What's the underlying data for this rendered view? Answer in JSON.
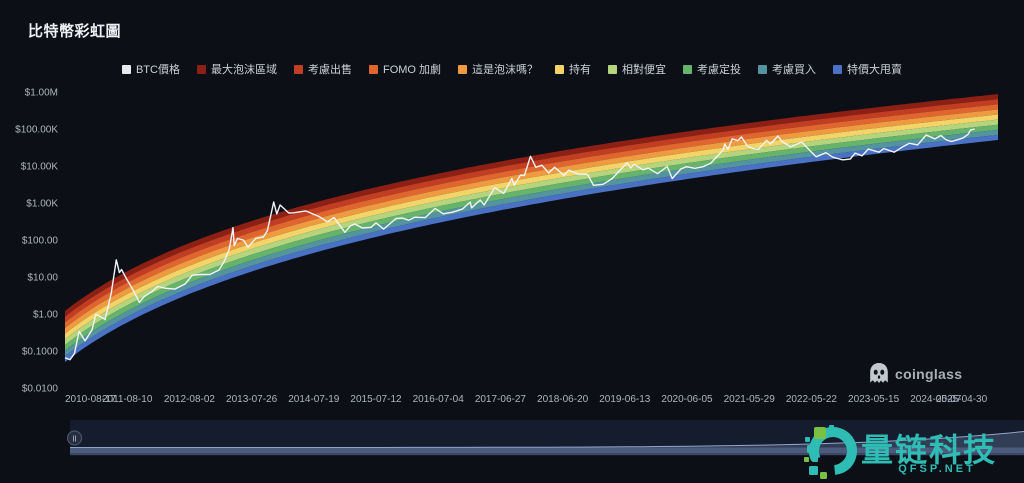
{
  "page": {
    "title": "比特幣彩虹圖"
  },
  "branding": {
    "logo_text": "coinglass"
  },
  "watermark": {
    "brand": "量链科技",
    "site": "QFSP.NET",
    "color": "#2fbcb4",
    "accent_green": "#7ac143"
  },
  "chart_data": {
    "type": "line",
    "title": "比特幣彩虹圖",
    "y_scale": "log",
    "line_series_name": "BTC價格",
    "line_color": "#f2f4f7",
    "btc_legend_color": "#e8eaed",
    "background": "#0c0f16",
    "y_ticks": [
      {
        "label": "$1.00M",
        "value": 1000000
      },
      {
        "label": "$100.00K",
        "value": 100000
      },
      {
        "label": "$10.00K",
        "value": 10000
      },
      {
        "label": "$1.00K",
        "value": 1000
      },
      {
        "label": "$100.00",
        "value": 100
      },
      {
        "label": "$10.00",
        "value": 10
      },
      {
        "label": "$1.00",
        "value": 1
      },
      {
        "label": "$0.1000",
        "value": 0.1
      },
      {
        "label": "$0.0100",
        "value": 0.01
      }
    ],
    "x_ticks": [
      "2010-08-17",
      "2011-08-10",
      "2012-08-02",
      "2013-07-26",
      "2014-07-19",
      "2015-07-12",
      "2016-07-04",
      "2017-06-27",
      "2018-06-20",
      "2019-06-13",
      "2020-06-05",
      "2021-05-29",
      "2022-05-22",
      "2023-05-15",
      "2024-05-07",
      "2025-04-30"
    ],
    "bands": [
      {
        "label": "最大泡沫區域",
        "color": "#8d2015"
      },
      {
        "label": "考慮出售",
        "color": "#c23e22"
      },
      {
        "label": "FOMO 加劇",
        "color": "#e0662f"
      },
      {
        "label": "這是泡沫嗎？",
        "color": "#ee9a41"
      },
      {
        "label": "持有",
        "color": "#f2d468"
      },
      {
        "label": "相對便宜",
        "color": "#b5d47e"
      },
      {
        "label": "考慮定投",
        "color": "#66b46c"
      },
      {
        "label": "考慮買入",
        "color": "#53949e"
      },
      {
        "label": "特價大甩賣",
        "color": "#4a72c4"
      }
    ],
    "band_model": {
      "genesis_date": "2009-01-09",
      "u_def": "log10(days_since_genesis)",
      "log10price": "f0 + slope*(u-u0) + curve*(u-u0)*(u-u_ref)",
      "top": {
        "u0": 2.767,
        "f0": 0.108,
        "slope": 5.436,
        "curve": 0.8,
        "u_ref": 3.3
      },
      "bottom": {
        "u0": 2.767,
        "f0": -1.27,
        "slope": 5.692,
        "curve": 1.0,
        "u_ref": 3.514
      }
    },
    "btc_series": [
      [
        "2010-08-17",
        0.07
      ],
      [
        "2010-09-15",
        0.062
      ],
      [
        "2010-10-10",
        0.09
      ],
      [
        "2010-11-06",
        0.36
      ],
      [
        "2010-12-10",
        0.2
      ],
      [
        "2011-01-20",
        0.4
      ],
      [
        "2011-02-10",
        1.05
      ],
      [
        "2011-03-10",
        0.9
      ],
      [
        "2011-04-05",
        0.75
      ],
      [
        "2011-05-10",
        3.8
      ],
      [
        "2011-06-08",
        31
      ],
      [
        "2011-06-26",
        14
      ],
      [
        "2011-07-08",
        17
      ],
      [
        "2011-08-06",
        9.5
      ],
      [
        "2011-09-10",
        5.0
      ],
      [
        "2011-10-19",
        2.2
      ],
      [
        "2011-11-14",
        3.1
      ],
      [
        "2011-12-30",
        4.3
      ],
      [
        "2012-02-01",
        5.9
      ],
      [
        "2012-03-15",
        5.3
      ],
      [
        "2012-05-10",
        5.0
      ],
      [
        "2012-07-08",
        6.9
      ],
      [
        "2012-08-18",
        11.8
      ],
      [
        "2012-10-01",
        12.4
      ],
      [
        "2012-11-28",
        12.4
      ],
      [
        "2013-01-20",
        16.5
      ],
      [
        "2013-02-20",
        29
      ],
      [
        "2013-03-20",
        62
      ],
      [
        "2013-04-10",
        230
      ],
      [
        "2013-04-17",
        75
      ],
      [
        "2013-05-06",
        117
      ],
      [
        "2013-06-10",
        105
      ],
      [
        "2013-07-06",
        68
      ],
      [
        "2013-08-20",
        118
      ],
      [
        "2013-10-02",
        128
      ],
      [
        "2013-10-25",
        190
      ],
      [
        "2013-11-30",
        1130
      ],
      [
        "2013-12-18",
        540
      ],
      [
        "2014-01-06",
        940
      ],
      [
        "2014-02-25",
        570
      ],
      [
        "2014-03-25",
        580
      ],
      [
        "2014-06-02",
        650
      ],
      [
        "2014-08-18",
        460
      ],
      [
        "2014-10-05",
        330
      ],
      [
        "2014-11-12",
        430
      ],
      [
        "2015-01-14",
        172
      ],
      [
        "2015-02-14",
        255
      ],
      [
        "2015-03-11",
        290
      ],
      [
        "2015-04-25",
        225
      ],
      [
        "2015-06-15",
        235
      ],
      [
        "2015-07-12",
        310
      ],
      [
        "2015-08-25",
        210
      ],
      [
        "2015-11-04",
        405
      ],
      [
        "2015-12-10",
        415
      ],
      [
        "2016-01-16",
        365
      ],
      [
        "2016-02-20",
        440
      ],
      [
        "2016-04-20",
        430
      ],
      [
        "2016-06-17",
        760
      ],
      [
        "2016-08-02",
        545
      ],
      [
        "2016-09-25",
        600
      ],
      [
        "2016-11-20",
        730
      ],
      [
        "2017-01-04",
        1130
      ],
      [
        "2017-01-12",
        790
      ],
      [
        "2017-03-03",
        1280
      ],
      [
        "2017-03-25",
        940
      ],
      [
        "2017-05-25",
        2750
      ],
      [
        "2017-06-15",
        2400
      ],
      [
        "2017-07-16",
        1940
      ],
      [
        "2017-09-01",
        4900
      ],
      [
        "2017-09-15",
        3200
      ],
      [
        "2017-10-20",
        6000
      ],
      [
        "2017-11-12",
        5900
      ],
      [
        "2017-12-17",
        19500
      ],
      [
        "2018-01-17",
        9800
      ],
      [
        "2018-02-20",
        11200
      ],
      [
        "2018-04-01",
        6900
      ],
      [
        "2018-05-05",
        9850
      ],
      [
        "2018-06-28",
        5900
      ],
      [
        "2018-07-25",
        8200
      ],
      [
        "2018-09-20",
        6400
      ],
      [
        "2018-11-10",
        6400
      ],
      [
        "2018-12-15",
        3200
      ],
      [
        "2019-02-08",
        3400
      ],
      [
        "2019-04-02",
        4900
      ],
      [
        "2019-05-14",
        8000
      ],
      [
        "2019-06-26",
        13000
      ],
      [
        "2019-07-17",
        9400
      ],
      [
        "2019-08-06",
        11900
      ],
      [
        "2019-09-25",
        8400
      ],
      [
        "2019-10-26",
        9300
      ],
      [
        "2019-12-18",
        6600
      ],
      [
        "2020-02-12",
        10300
      ],
      [
        "2020-03-12",
        4900
      ],
      [
        "2020-04-30",
        8800
      ],
      [
        "2020-06-01",
        10200
      ],
      [
        "2020-07-20",
        9200
      ],
      [
        "2020-09-05",
        10200
      ],
      [
        "2020-10-21",
        12800
      ],
      [
        "2020-11-24",
        19100
      ],
      [
        "2020-12-31",
        29000
      ],
      [
        "2021-01-08",
        41500
      ],
      [
        "2021-01-27",
        30400
      ],
      [
        "2021-02-21",
        57500
      ],
      [
        "2021-03-25",
        51300
      ],
      [
        "2021-04-14",
        64800
      ],
      [
        "2021-05-19",
        36800
      ],
      [
        "2021-06-21",
        31600
      ],
      [
        "2021-07-20",
        29800
      ],
      [
        "2021-09-06",
        52600
      ],
      [
        "2021-09-29",
        41500
      ],
      [
        "2021-11-10",
        69000
      ],
      [
        "2021-12-04",
        49200
      ],
      [
        "2022-01-22",
        35000
      ],
      [
        "2022-03-28",
        47400
      ],
      [
        "2022-05-12",
        28100
      ],
      [
        "2022-06-18",
        18900
      ],
      [
        "2022-08-14",
        24400
      ],
      [
        "2022-09-21",
        18500
      ],
      [
        "2022-11-09",
        15900
      ],
      [
        "2022-11-21",
        15700
      ],
      [
        "2023-01-01",
        16500
      ],
      [
        "2023-01-29",
        23700
      ],
      [
        "2023-03-10",
        20100
      ],
      [
        "2023-04-14",
        30400
      ],
      [
        "2023-06-15",
        25100
      ],
      [
        "2023-07-13",
        31400
      ],
      [
        "2023-09-11",
        25100
      ],
      [
        "2023-10-23",
        33900
      ],
      [
        "2023-12-08",
        43700
      ],
      [
        "2024-01-23",
        39600
      ],
      [
        "2024-03-13",
        73100
      ],
      [
        "2024-05-01",
        57300
      ],
      [
        "2024-06-06",
        71100
      ],
      [
        "2024-07-05",
        54000
      ],
      [
        "2024-08-05",
        49100
      ],
      [
        "2024-09-06",
        53900
      ],
      [
        "2024-10-10",
        60300
      ],
      [
        "2024-11-09",
        76500
      ],
      [
        "2024-11-22",
        99000
      ],
      [
        "2024-12-17",
        106100
      ]
    ]
  },
  "navigator": {
    "handle_icon": "grip"
  }
}
